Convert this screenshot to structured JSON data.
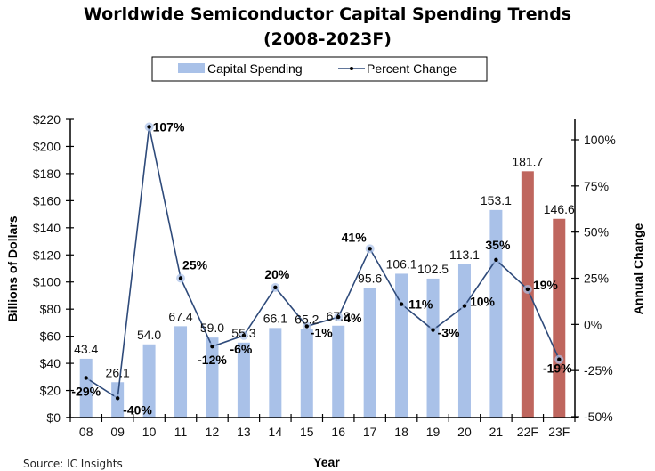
{
  "chart_data": {
    "type": "bar",
    "title": "Worldwide Semiconductor Capital Spending Trends",
    "subtitle": "(2008-2023F)",
    "xlabel": "Year",
    "ylabel": "Billions of Dollars",
    "y2label": "Annual Change",
    "source": "Source: IC Insights",
    "categories": [
      "08",
      "09",
      "10",
      "11",
      "12",
      "13",
      "14",
      "15",
      "16",
      "17",
      "18",
      "19",
      "20",
      "21",
      "22F",
      "23F"
    ],
    "ylim": [
      0,
      220
    ],
    "yticks": [
      "$0",
      "$20",
      "$40",
      "$60",
      "$80",
      "$100",
      "$120",
      "$140",
      "$160",
      "$180",
      "$200",
      "$220"
    ],
    "y2lim": [
      -50,
      110
    ],
    "y2ticks": [
      "-50%",
      "-25%",
      "0%",
      "25%",
      "50%",
      "75%",
      "100%"
    ],
    "grid": false,
    "legend": {
      "placement": "top-center",
      "entries": [
        "Capital Spending",
        "Percent Change"
      ]
    },
    "series": [
      {
        "name": "Capital Spending",
        "type": "bar",
        "axis": "left",
        "values": [
          43.4,
          26.1,
          54.0,
          67.4,
          59.0,
          55.3,
          66.1,
          65.2,
          67.8,
          95.6,
          106.1,
          102.5,
          113.1,
          153.1,
          181.7,
          146.6
        ],
        "labels": [
          "43.4",
          "26.1",
          "54.0",
          "67.4",
          "59.0",
          "55.3",
          "66.1",
          "65.2",
          "67.8",
          "95.6",
          "106.1",
          "102.5",
          "113.1",
          "153.1",
          "181.7",
          "146.6"
        ],
        "forecast": [
          false,
          false,
          false,
          false,
          false,
          false,
          false,
          false,
          false,
          false,
          false,
          false,
          false,
          false,
          true,
          true
        ]
      },
      {
        "name": "Percent Change",
        "type": "line",
        "axis": "right",
        "values": [
          -29,
          -40,
          107,
          25,
          -12,
          -6,
          20,
          -1,
          4,
          41,
          11,
          -3,
          10,
          35,
          19,
          -19
        ],
        "labels": [
          "-29%",
          "-40%",
          "107%",
          "25%",
          "-12%",
          "-6%",
          "20%",
          "-1%",
          "4%",
          "41%",
          "11%",
          "-3%",
          "10%",
          "35%",
          "19%",
          "-19%"
        ]
      }
    ],
    "colors": {
      "bar": "#a9c1e8",
      "bar_forecast": "#bf665e",
      "line": "#2e4a7a",
      "marker": "#000000"
    }
  }
}
